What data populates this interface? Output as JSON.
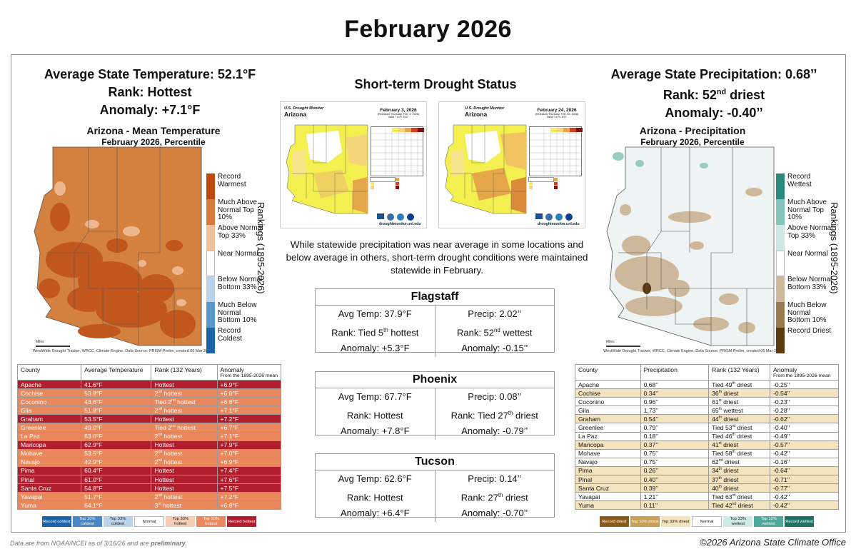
{
  "title": "February 2026",
  "temp_summary": {
    "line1": "Average State Temperature: 52.1°F",
    "line2": "Rank: Hottest",
    "line3": "Anomaly: +7.1°F"
  },
  "precip_summary": {
    "line1": "Average State Precipitation: 0.68’’",
    "line2_pre": "Rank: 52",
    "line2_sup": "nd",
    "line2_post": " driest",
    "line3": "Anomaly: -0.40’’"
  },
  "temp_map": {
    "title": "Arizona - Mean Temperature",
    "subtitle": "February 2026, Percentile",
    "miles": "Miles",
    "footnote": "WestWide Drought Tracker, WRCC, Climate Engine, Data Source: PRISM Prelim, created 05 Mar 2026",
    "legend": [
      {
        "label": "Record Warmest",
        "color": "#bf4a10"
      },
      {
        "label": "Much Above Normal Top 10%",
        "color": "#d67a3c"
      },
      {
        "label": "Above Normal Top 33%",
        "color": "#f0c09a"
      },
      {
        "label": "Near Normal",
        "color": "#ffffff"
      },
      {
        "label": "Below Normal Bottom 33%",
        "color": "#b9d4ea"
      },
      {
        "label": "Much Below Normal Bottom 10%",
        "color": "#5c97cc"
      },
      {
        "label": "Record Coldest",
        "color": "#1d63a8"
      }
    ],
    "rankings": "Rankings (1895-2026)"
  },
  "precip_map": {
    "title": "Arizona - Precipitation",
    "subtitle": "February 2026, Percentile",
    "miles": "Miles",
    "footnote": "WestWide Drought Tracker, WRCC, Climate Engine, Data Source: PRISM Prelim, created 05 Mar 2026",
    "legend": [
      {
        "label": "Record Wettest",
        "color": "#2a8a7e"
      },
      {
        "label": "Much Above Normal Top 10%",
        "color": "#86c3bb"
      },
      {
        "label": "Above Normal Top 33%",
        "color": "#cde8e4"
      },
      {
        "label": "Near Normal",
        "color": "#ffffff"
      },
      {
        "label": "Below Normal Bottom 33%",
        "color": "#cdb89c"
      },
      {
        "label": "Much Below Normal Bottom 10%",
        "color": "#9a7a52"
      },
      {
        "label": "Record Driest",
        "color": "#5a3a12"
      }
    ],
    "rankings": "Rankings (1895-2026)"
  },
  "drought": {
    "title": "Short-term Drought Status",
    "paragraph": "While statewide precipitation was near average in some locations and below average in others, short-term drought conditions were maintained statewide in February.",
    "maps": [
      {
        "header": "U.S. Drought Monitor",
        "state": "Arizona",
        "date": "February 3, 2026",
        "released": "(Released Thursday, Feb. 5, 2026)",
        "valid": "Valid 7 a.m. EST",
        "url": "droughtmonitor.unl.edu"
      },
      {
        "header": "U.S. Drought Monitor",
        "state": "Arizona",
        "date": "February 24, 2026",
        "released": "(Released Thursday, Feb. 26, 2026)",
        "valid": "Valid 7 a.m. EST",
        "url": "droughtmonitor.unl.edu"
      }
    ]
  },
  "cities": [
    {
      "name": "Flagstaff",
      "t1": "Avg Temp: 37.9°F",
      "t2_pre": "Rank: Tied 5",
      "t2_sup": "th",
      "t2_post": " hottest",
      "t3": "Anomaly: +5.3°F",
      "p1": "Precip: 2.02’’",
      "p2_pre": "Rank: 52",
      "p2_sup": "nd",
      "p2_post": " wettest",
      "p3": "Anomaly: -0.15’’"
    },
    {
      "name": "Phoenix",
      "t1": "Avg Temp: 67.7°F",
      "t2_pre": "Rank: Hottest",
      "t2_sup": "",
      "t2_post": "",
      "t3": "Anomaly: +7.8°F",
      "p1": "Precip: 0.08’’",
      "p2_pre": "Rank: Tied 27",
      "p2_sup": "th",
      "p2_post": " driest",
      "p3": "Anomaly: -0.79’’"
    },
    {
      "name": "Tucson",
      "t1": "Avg Temp: 62.6°F",
      "t2_pre": "Rank: Hottest",
      "t2_sup": "",
      "t2_post": "",
      "t3": "Anomaly: +6.4°F",
      "p1": "Precip: 0.14’’",
      "p2_pre": "Rank: 27",
      "p2_sup": "th",
      "p2_post": " driest",
      "p3": "Anomaly: -0.70’’"
    }
  ],
  "temp_table": {
    "headers": {
      "county": "County",
      "value": "Average Temperature",
      "rank": "Rank (132 Years)",
      "anom": "Anomaly",
      "anom_sub": "From the 1895-2026 mean"
    },
    "rows": [
      {
        "county": "Apache",
        "value": "41.6°F",
        "rank": "Hottest",
        "sup": "",
        "rank2": "",
        "anom": "+6.9°F",
        "cat": "record"
      },
      {
        "county": "Cochise",
        "value": "53.8°F",
        "rank": "2",
        "sup": "nd",
        "rank2": " hottest",
        "anom": "+6.6°F",
        "cat": "much"
      },
      {
        "county": "Coconino",
        "value": "43.6°F",
        "rank": "Tied 2",
        "sup": "nd",
        "rank2": " hottest",
        "anom": "+6.8°F",
        "cat": "much"
      },
      {
        "county": "Gila",
        "value": "51.8°F",
        "rank": "2",
        "sup": "nd",
        "rank2": " hottest",
        "anom": "+7.1°F",
        "cat": "much"
      },
      {
        "county": "Graham",
        "value": "53.5°F",
        "rank": "Hottest",
        "sup": "",
        "rank2": "",
        "anom": "+7.2°F",
        "cat": "record"
      },
      {
        "county": "Greenlee",
        "value": "49.0°F",
        "rank": "Tied 2",
        "sup": "nd",
        "rank2": " hottest",
        "anom": "+6.7°F",
        "cat": "much"
      },
      {
        "county": "La Paz",
        "value": "63.0°F",
        "rank": "2",
        "sup": "nd",
        "rank2": " hottest",
        "anom": "+7.1°F",
        "cat": "much"
      },
      {
        "county": "Maricopa",
        "value": "62.9°F",
        "rank": "Hottest",
        "sup": "",
        "rank2": "",
        "anom": "+7.9°F",
        "cat": "record"
      },
      {
        "county": "Mohave",
        "value": "53.5°F",
        "rank": "2",
        "sup": "nd",
        "rank2": " hottest",
        "anom": "+7.0°F",
        "cat": "much"
      },
      {
        "county": "Navajo",
        "value": "42.9°F",
        "rank": "2",
        "sup": "nd",
        "rank2": " hottest",
        "anom": "+6.9°F",
        "cat": "much"
      },
      {
        "county": "Pima",
        "value": "60.4°F",
        "rank": "Hottest",
        "sup": "",
        "rank2": "",
        "anom": "+7.4°F",
        "cat": "record"
      },
      {
        "county": "Pinal",
        "value": "61.0°F",
        "rank": "Hottest",
        "sup": "",
        "rank2": "",
        "anom": "+7.6°F",
        "cat": "record"
      },
      {
        "county": "Santa Cruz",
        "value": "54.8°F",
        "rank": "Hottest",
        "sup": "",
        "rank2": "",
        "anom": "+7.5°F",
        "cat": "record"
      },
      {
        "county": "Yavapai",
        "value": "51.7°F",
        "rank": "2",
        "sup": "nd",
        "rank2": " hottest",
        "anom": "+7.2°F",
        "cat": "much"
      },
      {
        "county": "Yuma",
        "value": "64.1°F",
        "rank": "3",
        "sup": "rd",
        "rank2": " hottest",
        "anom": "+6.8°F",
        "cat": "much"
      }
    ],
    "key": [
      {
        "label": "Record coldest",
        "color": "#1d63a8",
        "fg": "#fff"
      },
      {
        "label": "Top 10% coldest",
        "color": "#4a86c4",
        "fg": "#fff"
      },
      {
        "label": "Top 33% coldest",
        "color": "#b9d4ea",
        "fg": "#111"
      },
      {
        "label": "Normal",
        "color": "#ffffff",
        "fg": "#111"
      },
      {
        "label": "Top 33% hottest",
        "color": "#f6cdb4",
        "fg": "#111"
      },
      {
        "label": "Top 10% hottest",
        "color": "#e8885c",
        "fg": "#fff"
      },
      {
        "label": "Record hottest",
        "color": "#b01e2e",
        "fg": "#fff"
      }
    ]
  },
  "precip_table": {
    "headers": {
      "county": "County",
      "value": "Precipitation",
      "rank": "Rank (132 Years)",
      "anom": "Anomaly",
      "anom_sub": "From the 1895-2026 mean"
    },
    "rows": [
      {
        "county": "Apache",
        "value": "0.68’’",
        "rank": "Tied 49",
        "sup": "th",
        "rank2": " driest",
        "anom": "-0.25’’",
        "cat": "normal"
      },
      {
        "county": "Cochise",
        "value": "0.34’’",
        "rank": "36",
        "sup": "th",
        "rank2": " driest",
        "anom": "-0.54’’",
        "cat": "dry33"
      },
      {
        "county": "Coconino",
        "value": "0.96’’",
        "rank": "61",
        "sup": "st",
        "rank2": " driest",
        "anom": "-0.23’’",
        "cat": "normal"
      },
      {
        "county": "Gila",
        "value": "1.73’’",
        "rank": "65",
        "sup": "th",
        "rank2": " wettest",
        "anom": "-0.28’’",
        "cat": "normal"
      },
      {
        "county": "Graham",
        "value": "0.54’’",
        "rank": "44",
        "sup": "th",
        "rank2": " driest",
        "anom": "-0.62’’",
        "cat": "dry33"
      },
      {
        "county": "Greenlee",
        "value": "0.79’’",
        "rank": "Tied 53",
        "sup": "rd",
        "rank2": " driest",
        "anom": "-0.40’’",
        "cat": "normal"
      },
      {
        "county": "La Paz",
        "value": "0.18’’",
        "rank": "Tied 46",
        "sup": "th",
        "rank2": " driest",
        "anom": "-0.49’’",
        "cat": "normal"
      },
      {
        "county": "Maricopa",
        "value": "0.37’’",
        "rank": "41",
        "sup": "st",
        "rank2": " driest",
        "anom": "-0.57’’",
        "cat": "dry33"
      },
      {
        "county": "Mohave",
        "value": "0.75’’",
        "rank": "Tied 58",
        "sup": "th",
        "rank2": " driest",
        "anom": "-0.42’’",
        "cat": "normal"
      },
      {
        "county": "Navajo",
        "value": "0.75’’",
        "rank": "62",
        "sup": "nd",
        "rank2": " driest",
        "anom": "-0.16’’",
        "cat": "normal"
      },
      {
        "county": "Pima",
        "value": "0.26’’",
        "rank": "34",
        "sup": "th",
        "rank2": " driest",
        "anom": "-0.64’’",
        "cat": "dry33"
      },
      {
        "county": "Pinal",
        "value": "0.40’’",
        "rank": "37",
        "sup": "th",
        "rank2": " driest",
        "anom": "-0.71’’",
        "cat": "dry33"
      },
      {
        "county": "Santa Cruz",
        "value": "0.39’’",
        "rank": "40",
        "sup": "th",
        "rank2": " driest",
        "anom": "-0.77’’",
        "cat": "dry33"
      },
      {
        "county": "Yavapai",
        "value": "1.21’’",
        "rank": "Tied 63",
        "sup": "rd",
        "rank2": " driest",
        "anom": "-0.42’’",
        "cat": "normal"
      },
      {
        "county": "Yuma",
        "value": "0.11’’",
        "rank": "Tied 42",
        "sup": "nd",
        "rank2": " driest",
        "anom": "-0.42’’",
        "cat": "dry33"
      }
    ],
    "key": [
      {
        "label": "Record driest",
        "color": "#8a5a1a",
        "fg": "#fff"
      },
      {
        "label": "Top 10% driest",
        "color": "#c9a055",
        "fg": "#fff"
      },
      {
        "label": "Top 33% driest",
        "color": "#f3e3bf",
        "fg": "#111"
      },
      {
        "label": "Normal",
        "color": "#ffffff",
        "fg": "#111"
      },
      {
        "label": "Top 33% wettest",
        "color": "#cfe9e4",
        "fg": "#111"
      },
      {
        "label": "Top 10% wettest",
        "color": "#4ea99c",
        "fg": "#fff"
      },
      {
        "label": "Record wettest",
        "color": "#1d7466",
        "fg": "#fff"
      }
    ]
  },
  "colors": {
    "record_hot_row": "#b01e2e",
    "much_hot_row": "#e8885c",
    "dry33_row": "#f3e3bf",
    "normal_row": "#ffffff"
  },
  "footer": {
    "note_pre": "Data are from NOAA/NCEI as of 3/16/26 and are ",
    "note_em": "preliminary",
    "note_post": ".",
    "copyright": "©2026 Arizona State Climate Office"
  }
}
